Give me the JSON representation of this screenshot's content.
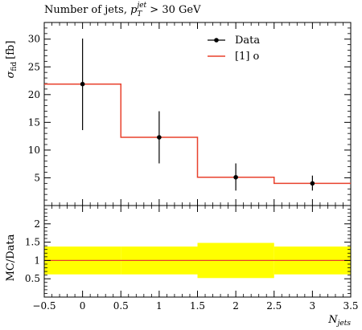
{
  "chart_data": [
    {
      "panel": "main",
      "type": "line",
      "title_main": "Number of jets, ",
      "title_p": "p",
      "title_sub": "T",
      "title_sup": "jet",
      "title_cut": " > 30 GeV",
      "ylabel_sym": "σ",
      "ylabel_sub": "fid",
      "ylabel_unit": "[fb]",
      "xlabel_sym": "N",
      "xlabel_sub": "jets",
      "xlim": [
        -0.5,
        3.5
      ],
      "ylim": [
        0,
        33
      ],
      "xticks": [
        "−0.5",
        "0",
        "0.5",
        "1",
        "1.5",
        "2",
        "2.5",
        "3",
        "3.5"
      ],
      "yticks": [
        "0",
        "5",
        "10",
        "15",
        "20",
        "25",
        "30"
      ],
      "legend_position": "top-right",
      "series": [
        {
          "name": "Data",
          "kind": "points_with_errors",
          "color": "#000000",
          "x": [
            0,
            1,
            2,
            3
          ],
          "y": [
            21.9,
            12.3,
            5.1,
            4.0
          ],
          "err_low": [
            8.3,
            4.7,
            2.4,
            1.3
          ],
          "err_high": [
            8.2,
            4.7,
            2.5,
            1.4
          ]
        },
        {
          "name": "[1] o",
          "kind": "histogram",
          "color": "#e8412c",
          "bin_edges": [
            -0.5,
            0.5,
            1.5,
            2.5,
            3.5
          ],
          "values": [
            21.9,
            12.3,
            5.1,
            4.0
          ]
        }
      ]
    },
    {
      "panel": "ratio",
      "type": "area",
      "ylabel": "MC/Data",
      "xlim": [
        -0.5,
        3.5
      ],
      "ylim": [
        0,
        2.5
      ],
      "yticks": [
        "0",
        "0.5",
        "1",
        "1.5",
        "2"
      ],
      "band_color": "#ffff00",
      "line_color": "#e8412c",
      "bin_edges": [
        -0.5,
        0.5,
        1.5,
        2.5,
        3.5
      ],
      "ratio": [
        1.0,
        1.0,
        1.0,
        1.0
      ],
      "band_low": [
        0.62,
        0.62,
        0.52,
        0.62
      ],
      "band_high": [
        1.38,
        1.38,
        1.48,
        1.38
      ]
    }
  ]
}
